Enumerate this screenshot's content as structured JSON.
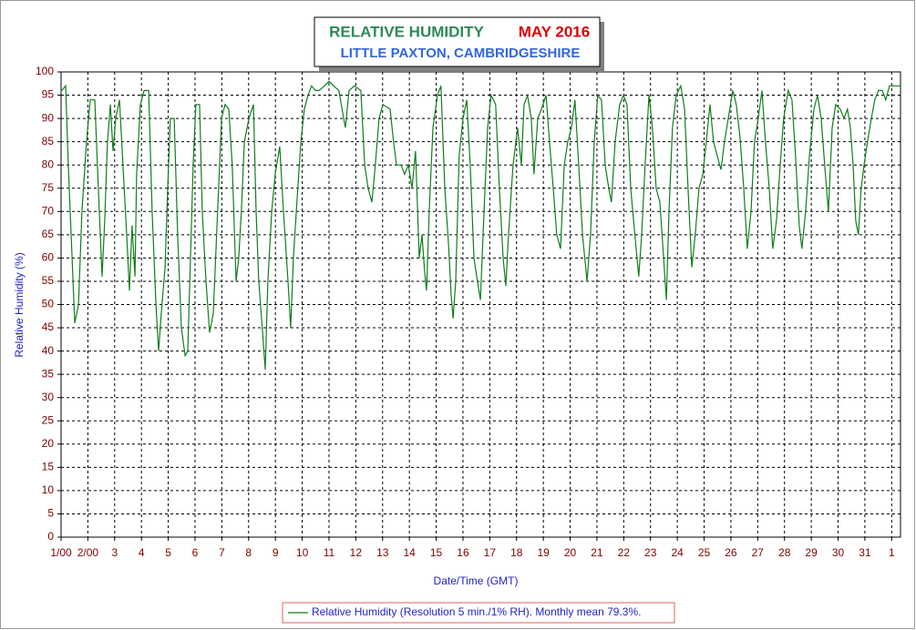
{
  "chart_data": {
    "type": "line",
    "title": "RELATIVE HUMIDITY",
    "title_date": "MAY 2016",
    "subtitle": "LITTLE PAXTON, CAMBRIDGESHIRE",
    "x_label": "Date/Time (GMT)",
    "y_label": "Relative Humidity (%)",
    "xlim": [
      1,
      32.33
    ],
    "ylim": [
      0,
      100
    ],
    "xticks": [
      {
        "value": 1,
        "label": "1/00"
      },
      {
        "value": 2,
        "label": "2/00"
      },
      3,
      4,
      5,
      6,
      7,
      8,
      9,
      10,
      11,
      12,
      13,
      14,
      15,
      16,
      17,
      18,
      19,
      20,
      21,
      22,
      23,
      24,
      25,
      26,
      27,
      28,
      29,
      30,
      31,
      {
        "value": 32,
        "label": "1"
      }
    ],
    "yticks": [
      0,
      5,
      10,
      15,
      20,
      25,
      30,
      35,
      40,
      45,
      50,
      55,
      60,
      65,
      70,
      75,
      80,
      85,
      90,
      95,
      100
    ],
    "grid": true,
    "legend": "bottom",
    "x": [
      1.03,
      1.17,
      1.27,
      1.41,
      1.51,
      1.65,
      1.78,
      1.95,
      2.09,
      2.26,
      2.39,
      2.53,
      2.63,
      2.73,
      2.84,
      2.94,
      3.04,
      3.18,
      3.31,
      3.45,
      3.55,
      3.65,
      3.76,
      3.82,
      3.96,
      4.1,
      4.27,
      4.4,
      4.54,
      4.64,
      4.74,
      4.88,
      4.98,
      5.08,
      5.22,
      5.35,
      5.49,
      5.63,
      5.73,
      5.83,
      5.93,
      6.03,
      6.17,
      6.27,
      6.41,
      6.54,
      6.68,
      6.82,
      6.99,
      7.12,
      7.26,
      7.39,
      7.53,
      7.63,
      7.73,
      7.84,
      8.01,
      8.18,
      8.28,
      8.38,
      8.52,
      8.62,
      8.72,
      8.86,
      8.99,
      9.16,
      9.3,
      9.47,
      9.57,
      9.67,
      9.78,
      9.95,
      10.08,
      10.22,
      10.35,
      10.49,
      10.63,
      10.83,
      11.0,
      11.17,
      11.37,
      11.61,
      11.75,
      11.95,
      12.19,
      12.33,
      12.46,
      12.6,
      12.73,
      12.87,
      13.01,
      13.28,
      13.41,
      13.52,
      13.69,
      13.82,
      13.96,
      14.1,
      14.23,
      14.37,
      14.47,
      14.57,
      14.64,
      14.74,
      14.88,
      15.05,
      15.18,
      15.32,
      15.46,
      15.56,
      15.63,
      15.73,
      15.86,
      16.0,
      16.14,
      16.27,
      16.41,
      16.54,
      16.65,
      16.75,
      16.92,
      17.05,
      17.22,
      17.36,
      17.5,
      17.6,
      17.7,
      17.87,
      18.04,
      18.18,
      18.28,
      18.41,
      18.55,
      18.65,
      18.79,
      18.93,
      19.1,
      19.23,
      19.37,
      19.5,
      19.64,
      19.78,
      19.91,
      20.05,
      20.18,
      20.32,
      20.46,
      20.63,
      20.76,
      20.9,
      21.03,
      21.17,
      21.31,
      21.44,
      21.54,
      21.68,
      21.85,
      21.99,
      22.12,
      22.26,
      22.43,
      22.56,
      22.67,
      22.8,
      22.94,
      23.07,
      23.21,
      23.35,
      23.49,
      23.59,
      23.69,
      23.82,
      23.96,
      24.13,
      24.27,
      24.4,
      24.54,
      24.67,
      24.81,
      24.95,
      25.08,
      25.22,
      25.35,
      25.49,
      25.63,
      25.76,
      25.9,
      26.07,
      26.2,
      26.34,
      26.48,
      26.61,
      26.75,
      26.88,
      27.02,
      27.16,
      27.29,
      27.43,
      27.56,
      27.7,
      27.84,
      27.97,
      28.14,
      28.28,
      28.41,
      28.55,
      28.65,
      28.79,
      28.93,
      29.1,
      29.23,
      29.37,
      29.5,
      29.64,
      29.78,
      29.91,
      30.08,
      30.22,
      30.35,
      30.46,
      30.56,
      30.66,
      30.76,
      30.86,
      30.97,
      31.1,
      31.24,
      31.37,
      31.51,
      31.65,
      31.78,
      31.92,
      32.33
    ],
    "series": [
      {
        "name": "Relative Humidity (Resolution 5 min./1% RH). Monthly mean 79.3%.",
        "color": "#0f7f1a",
        "values": [
          96,
          97,
          80,
          60,
          46,
          50,
          70,
          85,
          94,
          94,
          75,
          56,
          68,
          85,
          93,
          83,
          90,
          94,
          80,
          65,
          53,
          67,
          56,
          78,
          93,
          96,
          96,
          70,
          50,
          40,
          48,
          58,
          75,
          90,
          90,
          65,
          45,
          39,
          40,
          60,
          80,
          93,
          93,
          70,
          55,
          44,
          48,
          67,
          90,
          93,
          92,
          80,
          55,
          60,
          70,
          85,
          90,
          93,
          70,
          55,
          44,
          36,
          55,
          70,
          78,
          84,
          70,
          55,
          45,
          60,
          70,
          85,
          92,
          95,
          97,
          96,
          96,
          97,
          98,
          97,
          96,
          88,
          96,
          97,
          96,
          80,
          75,
          72,
          80,
          90,
          93,
          92,
          85,
          80,
          80,
          78,
          80,
          75,
          83,
          60,
          65,
          57,
          53,
          70,
          88,
          95,
          97,
          75,
          63,
          52,
          47,
          55,
          82,
          90,
          94,
          80,
          60,
          55,
          51,
          65,
          88,
          95,
          93,
          75,
          60,
          54,
          65,
          80,
          88,
          80,
          93,
          95,
          90,
          78,
          90,
          92,
          95,
          85,
          75,
          65,
          62,
          80,
          85,
          88,
          94,
          80,
          65,
          55,
          65,
          85,
          95,
          94,
          80,
          75,
          72,
          85,
          93,
          95,
          93,
          75,
          64,
          56,
          65,
          80,
          95,
          88,
          75,
          72,
          60,
          51,
          70,
          88,
          95,
          97,
          92,
          75,
          58,
          65,
          75,
          78,
          85,
          93,
          85,
          82,
          79,
          85,
          90,
          96,
          93,
          86,
          75,
          62,
          70,
          85,
          90,
          96,
          85,
          75,
          62,
          68,
          80,
          90,
          96,
          94,
          82,
          67,
          62,
          70,
          82,
          92,
          95,
          90,
          80,
          70,
          88,
          93,
          92,
          90,
          92,
          88,
          80,
          68,
          65,
          75,
          80,
          85,
          90,
          94,
          96,
          96,
          94,
          97,
          97
        ]
      }
    ]
  }
}
